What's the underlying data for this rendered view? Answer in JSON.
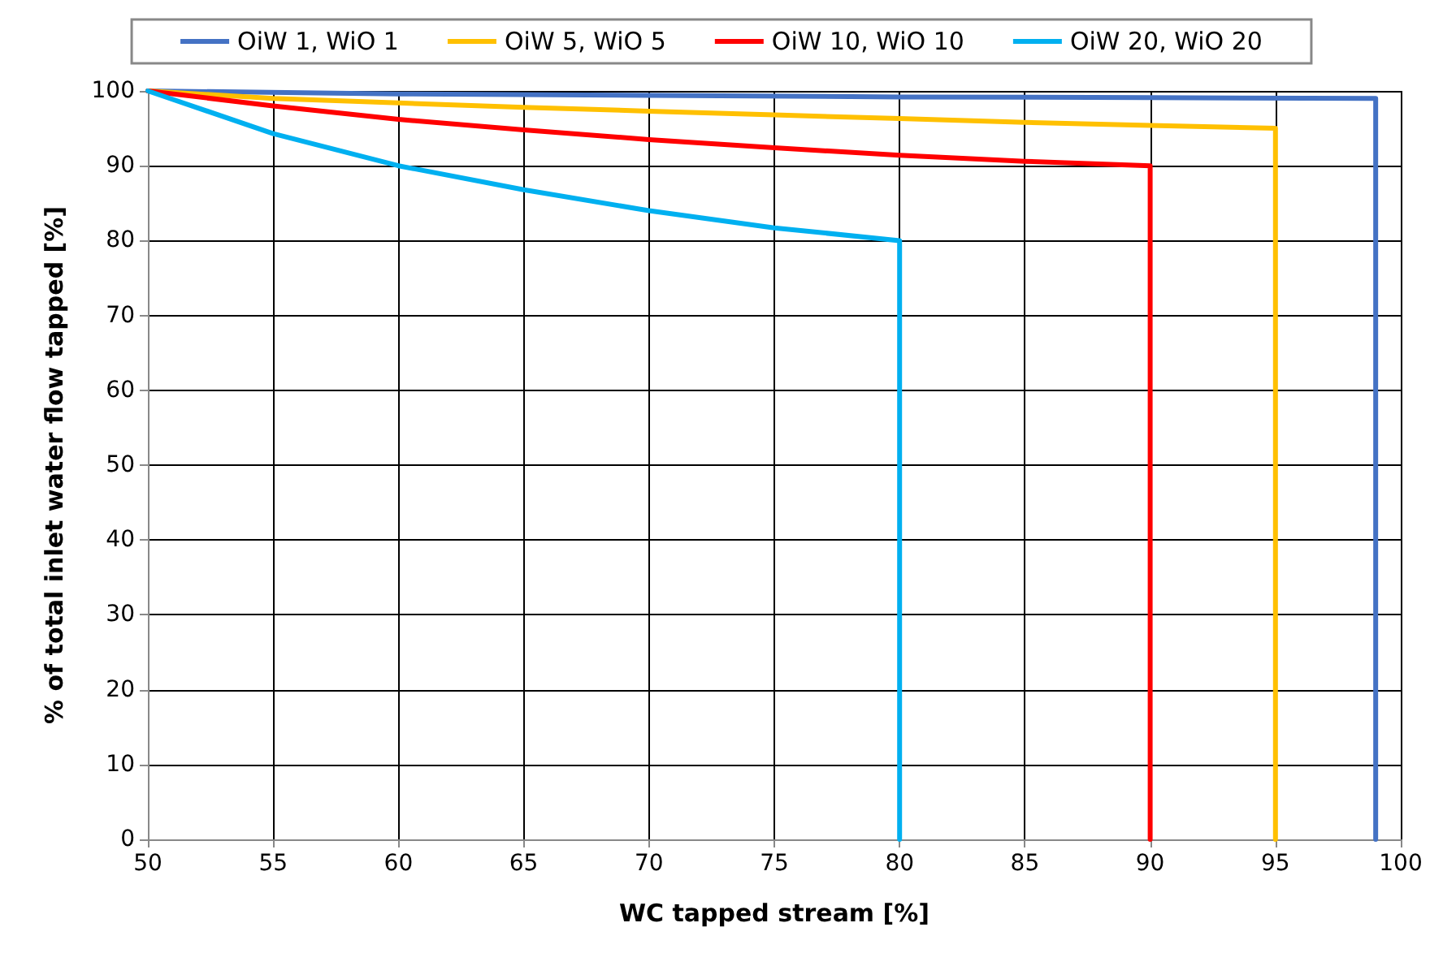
{
  "chart_data": {
    "type": "line",
    "xlabel": "WC tapped stream [%]",
    "ylabel": "% of total inlet water flow tapped [%]",
    "xlim": [
      50,
      100
    ],
    "xticks": [
      50,
      55,
      60,
      65,
      70,
      75,
      80,
      85,
      90,
      95,
      100
    ],
    "ylim": [
      0,
      100
    ],
    "yticks": [
      0,
      10,
      20,
      30,
      40,
      50,
      60,
      70,
      80,
      90,
      100
    ],
    "grid": true,
    "legend": "top",
    "marker": "none",
    "line_style": "solid",
    "series": [
      {
        "name": "OiW 1, WiO 1",
        "color": "#4472c4",
        "x": [
          50,
          60,
          70,
          80,
          90,
          99,
          99
        ],
        "values": [
          100,
          99.6,
          99.4,
          99.2,
          99.1,
          99,
          0
        ]
      },
      {
        "name": "OiW 5, WiO 5",
        "color": "#ffc000",
        "x": [
          50,
          55,
          60,
          65,
          70,
          75,
          80,
          85,
          90,
          95,
          95
        ],
        "values": [
          100,
          99,
          98.4,
          97.8,
          97.3,
          96.8,
          96.3,
          95.8,
          95.4,
          95,
          0
        ]
      },
      {
        "name": "OiW 10, WiO 10",
        "color": "#ff0000",
        "x": [
          50,
          55,
          60,
          65,
          70,
          75,
          80,
          85,
          90,
          90
        ],
        "values": [
          100,
          98,
          96.2,
          94.8,
          93.5,
          92.4,
          91.4,
          90.6,
          90,
          0
        ]
      },
      {
        "name": "OiW 20, WiO 20",
        "color": "#00b0f0",
        "x": [
          50,
          55,
          60,
          65,
          70,
          75,
          80,
          80
        ],
        "values": [
          100,
          94.3,
          90,
          86.8,
          84,
          81.7,
          80,
          0
        ]
      }
    ]
  }
}
